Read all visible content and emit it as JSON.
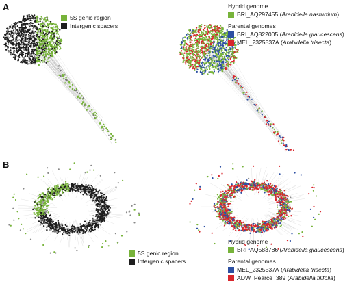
{
  "colors": {
    "genic": "#77b33a",
    "spacer": "#1e1e1e",
    "blue": "#2d4fa2",
    "red": "#d8262c",
    "edge": "#9a9a9a"
  },
  "panels": {
    "a": {
      "label": "A",
      "left_legend": [
        {
          "label": "5S genic region",
          "color": "#77b33a"
        },
        {
          "label": "Intergenic spacers",
          "color": "#1e1e1e"
        }
      ],
      "right_legend": {
        "hybrid_title": "Hybrid genome",
        "hybrid": [
          {
            "code": "BRI_AQ297455",
            "species": "Arabidella nasturtium",
            "color": "#77b33a"
          }
        ],
        "parental_title": "Parental genomes",
        "parental": [
          {
            "code": "BRI_AQ822005",
            "species": "Arabidella glaucescens",
            "color": "#2d4fa2"
          },
          {
            "code": "MEL_2325537A",
            "species": "Arabidella trisecta",
            "color": "#d8262c"
          }
        ]
      }
    },
    "b": {
      "label": "B",
      "left_legend": [
        {
          "label": "5S genic region",
          "color": "#77b33a"
        },
        {
          "label": "Intergenic spacers",
          "color": "#1e1e1e"
        }
      ],
      "right_legend": {
        "hybrid_title": "Hybrid genome",
        "hybrid": [
          {
            "code": "BRI_AQ583786",
            "species": "Arabidella glaucescens",
            "color": "#77b33a"
          }
        ],
        "parental_title": "Parental genomes",
        "parental": [
          {
            "code": "MEL_2325537A",
            "species": "Arabidella trisecta",
            "color": "#2d4fa2"
          },
          {
            "code": "ADW_Pearce_389",
            "species": "Arabidella filifolia",
            "color": "#d8262c"
          }
        ]
      }
    }
  }
}
